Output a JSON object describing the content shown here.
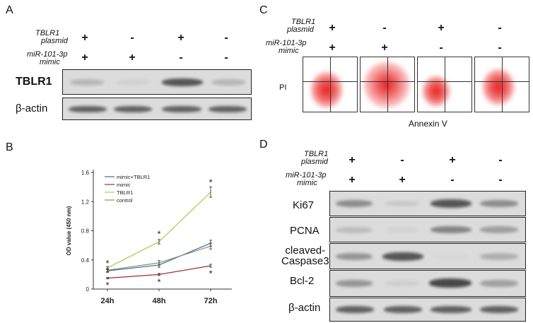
{
  "panelA": {
    "label": "A",
    "plasmid_label": [
      "TBLR1",
      "plasmid"
    ],
    "mimic_label": [
      "miR-101-3p",
      "mimic"
    ],
    "plasmid_signs": [
      "+",
      "-",
      "+",
      "-"
    ],
    "mimic_signs": [
      "+",
      "+",
      "-",
      "-"
    ],
    "rows": [
      "TBLR1",
      "β-actin"
    ],
    "band_intensity": {
      "TBLR1": [
        0.35,
        0.12,
        0.85,
        0.35
      ],
      "beta_actin": [
        0.8,
        0.8,
        0.8,
        0.8
      ]
    }
  },
  "panelB": {
    "label": "B",
    "chart_data": {
      "type": "line",
      "categories": [
        "24h",
        "48h",
        "72h"
      ],
      "ylabel": "OD value (450 nm)",
      "ylim": [
        0,
        1.6
      ],
      "yticks": [
        "0",
        "0.4",
        "0.8",
        "1.2",
        "1.6"
      ],
      "series": [
        {
          "name": "mimic+TBLR1",
          "color": "#4a5fb0",
          "values": [
            0.25,
            0.33,
            0.63
          ],
          "errors": [
            0.02,
            0.03,
            0.04
          ]
        },
        {
          "name": "mimic",
          "color": "#9b2d3a",
          "values": [
            0.15,
            0.2,
            0.32
          ],
          "errors": [
            0.01,
            0.015,
            0.02
          ]
        },
        {
          "name": "TBLR1",
          "color": "#b9c64f",
          "values": [
            0.29,
            0.65,
            1.33
          ],
          "errors": [
            0.02,
            0.03,
            0.07
          ]
        },
        {
          "name": "control",
          "color": "#7a9a55",
          "values": [
            0.26,
            0.36,
            0.59
          ],
          "errors": [
            0.02,
            0.03,
            0.04
          ]
        }
      ],
      "annotations": [
        "*",
        "*",
        "*",
        "*",
        "*",
        "*"
      ]
    }
  },
  "panelC": {
    "label": "C",
    "plasmid_label": [
      "TBLR1",
      "plasmid"
    ],
    "mimic_label": [
      "miR-101-3p",
      "mimic"
    ],
    "plasmid_signs": [
      "+",
      "-",
      "+",
      "-"
    ],
    "mimic_signs": [
      "+",
      "+",
      "-",
      "-"
    ],
    "ylabel": "PI",
    "xlabel": "Annexin V"
  },
  "panelD": {
    "label": "D",
    "plasmid_label": [
      "TBLR1",
      "plasmid"
    ],
    "mimic_label": [
      "miR-101-3p",
      "mimic"
    ],
    "plasmid_signs": [
      "+",
      "-",
      "+",
      "-"
    ],
    "mimic_signs": [
      "+",
      "+",
      "-",
      "-"
    ],
    "rows": [
      "Ki67",
      "PCNA",
      "cleaved-Caspase3",
      "Bcl-2",
      "β-actin"
    ],
    "row_label_lines": [
      [
        "Ki67"
      ],
      [
        "PCNA"
      ],
      [
        "cleaved-",
        "Caspase3"
      ],
      [
        "Bcl-2"
      ],
      [
        "β-actin"
      ]
    ],
    "band_intensity": [
      [
        0.6,
        0.2,
        0.85,
        0.6
      ],
      [
        0.3,
        0.1,
        0.65,
        0.5
      ],
      [
        0.55,
        0.85,
        0.05,
        0.4
      ],
      [
        0.55,
        0.15,
        0.9,
        0.5
      ],
      [
        0.8,
        0.8,
        0.8,
        0.8
      ]
    ]
  }
}
